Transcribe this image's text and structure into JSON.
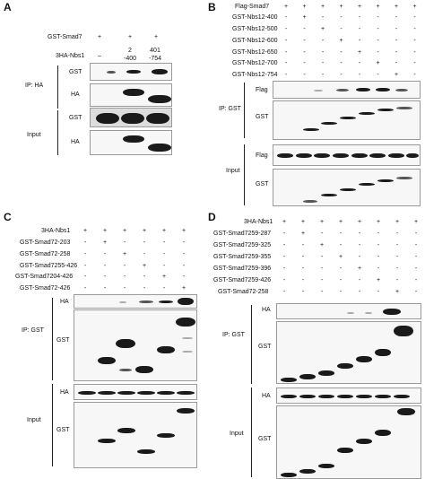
{
  "panels": {
    "A": {
      "letter": "A",
      "rows": [
        {
          "label": "GST-Smad7",
          "marks": [
            "+",
            "+",
            "+"
          ]
        },
        {
          "label": "3HA-Nbs1",
          "marks": [
            "–",
            "2\n-400",
            "401\n-754"
          ]
        }
      ],
      "ip_label": "IP: HA",
      "input_label": "Input",
      "blot_labels": [
        "GST",
        "HA",
        "GST",
        "HA"
      ]
    },
    "B": {
      "letter": "B",
      "rows": [
        {
          "label": "Flag-Smad7",
          "marks": [
            "+",
            "+",
            "+",
            "+",
            "+",
            "+",
            "+",
            "+"
          ]
        },
        {
          "label": "GST-Nbs12-400",
          "marks": [
            "-",
            "+",
            "-",
            "-",
            "-",
            "-",
            "-",
            "-"
          ]
        },
        {
          "label": "GST-Nbs12-500",
          "marks": [
            "-",
            "-",
            "+",
            "-",
            "-",
            "-",
            "-",
            "-"
          ]
        },
        {
          "label": "GST-Nbs12-600",
          "marks": [
            "-",
            "-",
            "-",
            "+",
            "-",
            "-",
            "-",
            "-"
          ]
        },
        {
          "label": "GST-Nbs12-650",
          "marks": [
            "-",
            "-",
            "-",
            "-",
            "+",
            "-",
            "-",
            "-"
          ]
        },
        {
          "label": "GST-Nbs12-700",
          "marks": [
            "-",
            "-",
            "-",
            "-",
            "-",
            "+",
            "-",
            "-"
          ]
        },
        {
          "label": "GST-Nbs12-754",
          "marks": [
            "-",
            "-",
            "-",
            "-",
            "-",
            "-",
            "+",
            "-"
          ]
        }
      ],
      "ip_label": "IP: GST",
      "input_label": "Input",
      "blot_labels": [
        "Flag",
        "GST",
        "Flag",
        "GST"
      ]
    },
    "C": {
      "letter": "C",
      "rows": [
        {
          "label": "3HA-Nbs1",
          "marks": [
            "+",
            "+",
            "+",
            "+",
            "+",
            "+"
          ]
        },
        {
          "label": "GST-Smad72-203",
          "marks": [
            "-",
            "+",
            "-",
            "-",
            "-",
            "-"
          ]
        },
        {
          "label": "GST-Smad72-258",
          "marks": [
            "-",
            "-",
            "+",
            "-",
            "-",
            "-"
          ]
        },
        {
          "label": "GST-Smad7255-426",
          "marks": [
            "-",
            "-",
            "-",
            "+",
            "-",
            "-"
          ]
        },
        {
          "label": "GST-Smad7204-426",
          "marks": [
            "-",
            "-",
            "-",
            "-",
            "+",
            "-"
          ]
        },
        {
          "label": "GST-Smad72-426",
          "marks": [
            "-",
            "-",
            "-",
            "-",
            "-",
            "+"
          ]
        }
      ],
      "ip_label": "IP: GST",
      "input_label": "Input",
      "blot_labels": [
        "HA",
        "GST",
        "HA",
        "GST"
      ]
    },
    "D": {
      "letter": "D",
      "rows": [
        {
          "label": "3HA-Nbs1",
          "marks": [
            "+",
            "+",
            "+",
            "+",
            "+",
            "+",
            "+",
            "+"
          ]
        },
        {
          "label": "GST-Smad7259-287",
          "marks": [
            "-",
            "+",
            "-",
            "-",
            "-",
            "-",
            "-",
            "-"
          ]
        },
        {
          "label": "GST-Smad7259-325",
          "marks": [
            "-",
            "-",
            "+",
            "-",
            "-",
            "-",
            "-",
            "-"
          ]
        },
        {
          "label": "GST-Smad7259-355",
          "marks": [
            "-",
            "-",
            "-",
            "+",
            "-",
            "-",
            "-",
            "-"
          ]
        },
        {
          "label": "GST-Smad7259-396",
          "marks": [
            "-",
            "-",
            "-",
            "-",
            "+",
            "-",
            "-",
            "-"
          ]
        },
        {
          "label": "GST-Smad7259-426",
          "marks": [
            "-",
            "-",
            "-",
            "-",
            "-",
            "+",
            "-",
            "-"
          ]
        },
        {
          "label": "GST-Smad72-258",
          "marks": [
            "-",
            "-",
            "-",
            "-",
            "-",
            "-",
            "+",
            "-"
          ]
        }
      ],
      "ip_label": "IP: GST",
      "input_label": "Input",
      "blot_labels": [
        "HA",
        "GST",
        "HA",
        "GST"
      ]
    }
  }
}
